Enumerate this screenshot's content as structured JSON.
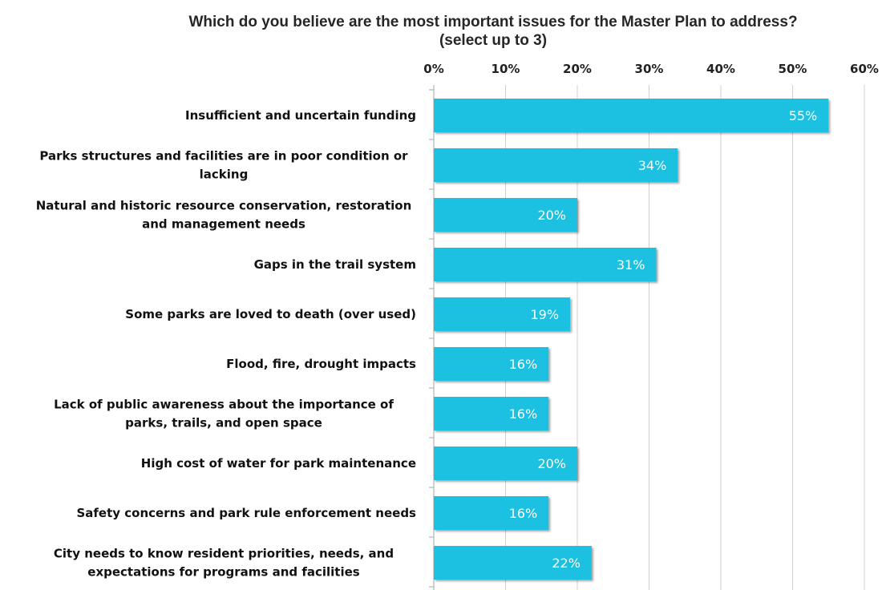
{
  "chart_data": {
    "type": "bar",
    "orientation": "horizontal",
    "title_line1": "Which do you believe are the most important issues for the Master Plan to address?",
    "title_line2": "(select up to 3)",
    "xlim": [
      0,
      60
    ],
    "x_ticks": [
      "0%",
      "10%",
      "20%",
      "30%",
      "40%",
      "50%",
      "60%"
    ],
    "x_axis_position": "top",
    "grid": true,
    "bar_color": "#1ec0e0",
    "categories": [
      [
        "Insufficient and uncertain funding"
      ],
      [
        "Parks structures and facilities are in poor condition or",
        "lacking"
      ],
      [
        "Natural and historic resource conservation, restoration",
        "and management needs"
      ],
      [
        "Gaps in the trail system"
      ],
      [
        "Some parks are loved to death (over used)"
      ],
      [
        "Flood, fire, drought impacts"
      ],
      [
        "Lack of public awareness about the importance of",
        "parks, trails, and open space"
      ],
      [
        "High cost of water for park maintenance"
      ],
      [
        "Safety concerns and park rule enforcement needs"
      ],
      [
        "City needs to know resident priorities, needs, and",
        "expectations for programs and facilities"
      ]
    ],
    "values": [
      55,
      34,
      20,
      31,
      19,
      16,
      16,
      20,
      16,
      22
    ],
    "data_labels": [
      "55%",
      "34%",
      "20%",
      "31%",
      "19%",
      "16%",
      "16%",
      "20%",
      "16%",
      "22%"
    ]
  }
}
